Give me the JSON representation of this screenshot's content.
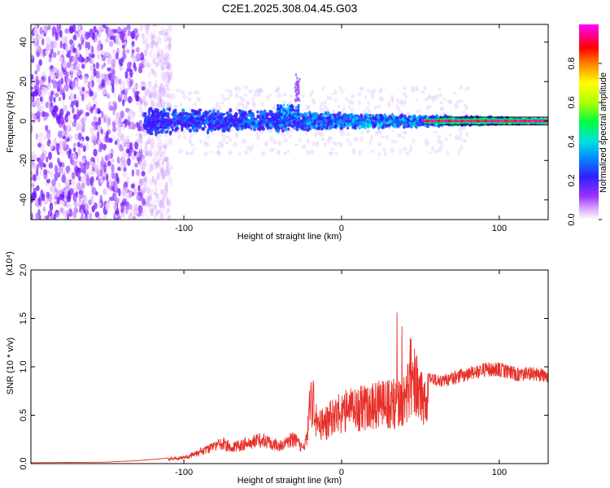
{
  "title": "C2E1.2025.308.04.45.G03",
  "chart_data": [
    {
      "type": "heatmap",
      "name": "spectrogram",
      "xlabel": "Height of straight line (km)",
      "ylabel": "Frequency (Hz)",
      "xlim": [
        -197,
        131
      ],
      "ylim": [
        -50,
        49
      ],
      "xticks": [
        -100,
        0,
        100
      ],
      "yticks": [
        -40,
        -20,
        0,
        20,
        40
      ],
      "xtick_labels": [
        "-100",
        "0",
        "100"
      ],
      "ytick_labels": [
        "-40",
        "-20",
        "0",
        "20",
        "40"
      ],
      "colorbar": {
        "label": "Normalized spectral amplitude",
        "range": [
          0,
          1
        ],
        "ticks": [
          0.0,
          0.2,
          0.4,
          0.6,
          0.8
        ],
        "tick_labels": [
          "0.0",
          "0.2",
          "0.4",
          "0.6",
          "0.8"
        ],
        "colors": [
          "#ffffff",
          "#e6b3ff",
          "#8000ff",
          "#2020ff",
          "#00c8ff",
          "#00ff60",
          "#c8ff00",
          "#ffff00",
          "#ff8000",
          "#ff0000",
          "#ff00ff"
        ]
      },
      "features": {
        "scatter_region_x": [
          -197,
          -108
        ],
        "band_center_hz": 0,
        "band_halfwidth_hz": [
          6,
          1
        ],
        "band_x": [
          -125,
          131
        ],
        "peak_x": -33,
        "peak_hz": 7,
        "spike_x": -28,
        "spike_hz": [
          10,
          24
        ],
        "strong_line_x": [
          52,
          131
        ]
      }
    },
    {
      "type": "line",
      "name": "snr",
      "xlabel": "Height of straight line (km)",
      "ylabel": "SNR (10 * v/v)",
      "multiplier": "(x10⁴)",
      "xlim": [
        -197,
        131
      ],
      "ylim": [
        0,
        2.0
      ],
      "xticks": [
        -100,
        0,
        100
      ],
      "yticks": [
        0.0,
        0.5,
        1.0,
        1.5,
        2.0
      ],
      "xtick_labels": [
        "-100",
        "0",
        "100"
      ],
      "ytick_labels": [
        "0.0",
        "0.5",
        "1.0",
        "1.5",
        "2.0"
      ],
      "color": "#e8302a",
      "series": [
        {
          "name": "SNR envelope",
          "x": [
            -197,
            -150,
            -130,
            -115,
            -100,
            -95,
            -85,
            -75,
            -70,
            -60,
            -50,
            -40,
            -30,
            -25,
            -22,
            -20,
            -18,
            -15,
            -10,
            -5,
            0,
            5,
            10,
            20,
            30,
            40,
            45,
            50,
            60,
            70,
            80,
            90,
            100,
            110,
            120,
            131
          ],
          "y": [
            0.01,
            0.015,
            0.03,
            0.05,
            0.08,
            0.12,
            0.2,
            0.28,
            0.22,
            0.28,
            0.32,
            0.25,
            0.34,
            0.2,
            0.35,
            0.9,
            0.92,
            0.55,
            0.6,
            0.7,
            0.75,
            0.78,
            0.82,
            0.85,
            0.88,
            0.9,
            1.3,
            1.0,
            0.92,
            0.95,
            1.0,
            1.05,
            1.05,
            1.0,
            1.0,
            0.98
          ]
        }
      ]
    }
  ]
}
